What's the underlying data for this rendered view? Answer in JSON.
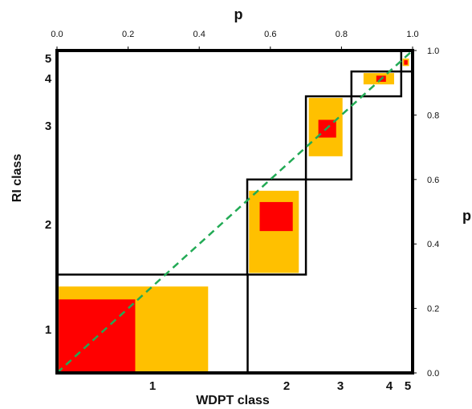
{
  "chart_data": {
    "type": "scatter",
    "xlabel": "WDPT class",
    "ylabel": "RI class",
    "top_axis_label": "p",
    "right_axis_label": "p",
    "p_ticks": [
      "0.0",
      "0.2",
      "0.4",
      "0.6",
      "0.8",
      "1.0"
    ],
    "p_tick_values": [
      0,
      0.2,
      0.4,
      0.6,
      0.8,
      1.0
    ],
    "xlim": [
      0,
      1
    ],
    "ylim": [
      0,
      1
    ],
    "x_class_labels": [
      "1",
      "2",
      "3",
      "4",
      "5"
    ],
    "y_class_labels": [
      "1",
      "2",
      "3",
      "4",
      "5"
    ],
    "class_boundaries_x": [
      0,
      0.535,
      0.7,
      0.828,
      0.968,
      1.0
    ],
    "class_boundaries_y": [
      0,
      0.305,
      0.6,
      0.858,
      0.935,
      1.0
    ],
    "yellow_rects": [
      {
        "x0": 0.005,
        "x1": 0.425,
        "y0": 0.0,
        "y1": 0.268
      },
      {
        "x0": 0.54,
        "x1": 0.68,
        "y0": 0.31,
        "y1": 0.565
      },
      {
        "x0": 0.708,
        "x1": 0.803,
        "y0": 0.672,
        "y1": 0.853
      },
      {
        "x0": 0.862,
        "x1": 0.948,
        "y0": 0.895,
        "y1": 0.93
      },
      {
        "x0": 0.972,
        "x1": 0.99,
        "y0": 0.952,
        "y1": 0.975
      }
    ],
    "red_rects": [
      {
        "x0": 0.005,
        "x1": 0.22,
        "y0": 0.0,
        "y1": 0.228
      },
      {
        "x0": 0.57,
        "x1": 0.663,
        "y0": 0.44,
        "y1": 0.53
      },
      {
        "x0": 0.735,
        "x1": 0.785,
        "y0": 0.73,
        "y1": 0.785
      },
      {
        "x0": 0.898,
        "x1": 0.925,
        "y0": 0.903,
        "y1": 0.922
      },
      {
        "x0": 0.976,
        "x1": 0.986,
        "y0": 0.956,
        "y1": 0.97
      }
    ],
    "reference_line": {
      "x": [
        0,
        1
      ],
      "y": [
        0,
        1
      ],
      "style": "dashed",
      "color": "#22aa55"
    },
    "colors": {
      "yellow": "#ffc000",
      "red": "#ff0000",
      "box": "#000000",
      "diagonal": "#22aa55"
    }
  }
}
